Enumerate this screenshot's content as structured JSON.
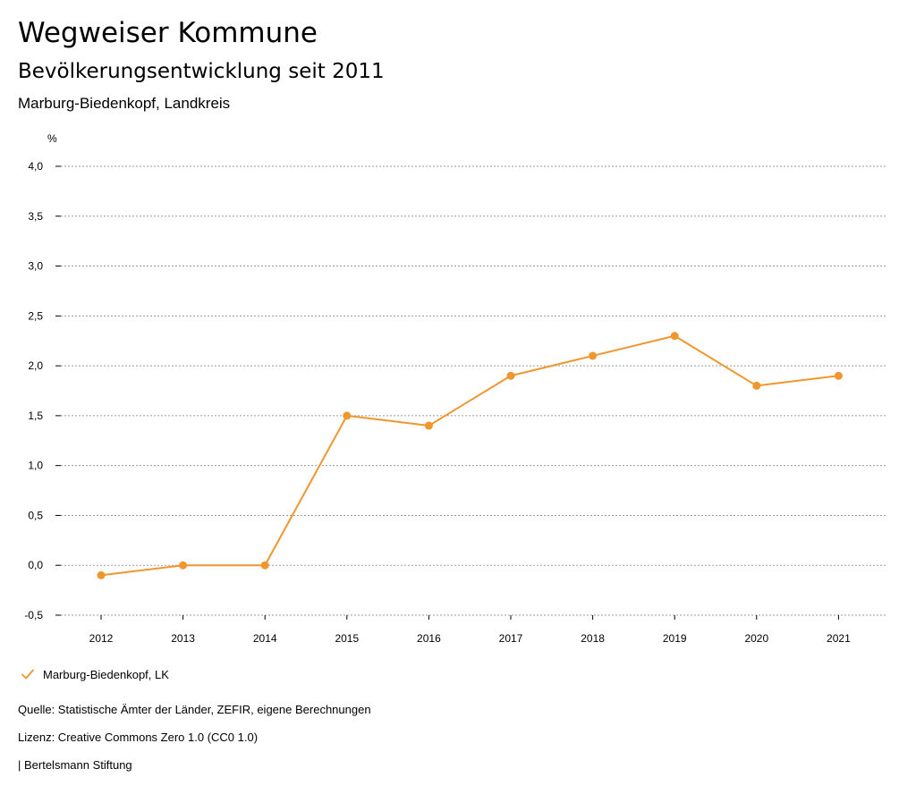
{
  "header": {
    "title": "Wegweiser Kommune",
    "subtitle": "Bevölkerungsentwicklung seit 2011",
    "region": "Marburg-Biedenkopf, Landkreis"
  },
  "chart_data": {
    "type": "line",
    "title": "Bevölkerungsentwicklung seit 2011",
    "xlabel": "",
    "ylabel": "%",
    "categories": [
      "2012",
      "2013",
      "2014",
      "2015",
      "2016",
      "2017",
      "2018",
      "2019",
      "2020",
      "2021"
    ],
    "series": [
      {
        "name": "Marburg-Biedenkopf, LK",
        "color": "#f0962e",
        "values": [
          -0.1,
          0.0,
          0.0,
          1.5,
          1.4,
          1.9,
          2.1,
          2.3,
          1.8,
          1.9
        ]
      }
    ],
    "ylim": [
      -0.5,
      4.0
    ],
    "yticks": [
      -0.5,
      0.0,
      0.5,
      1.0,
      1.5,
      2.0,
      2.5,
      3.0,
      3.5,
      4.0
    ],
    "ytick_labels": [
      "-0,5",
      "0,0",
      "0,5",
      "1,0",
      "1,5",
      "2,0",
      "2,5",
      "3,0",
      "3,5",
      "4,0"
    ],
    "grid": true,
    "legend": "bottom-left"
  },
  "legend": {
    "label": "Marburg-Biedenkopf, LK",
    "icon": "checkmark-icon",
    "color": "#f0962e"
  },
  "footer": {
    "source": "Quelle: Statistische Ämter der Länder, ZEFIR, eigene Berechnungen",
    "license": "Lizenz: Creative Commons Zero 1.0 (CC0 1.0)",
    "publisher": "| Bertelsmann Stiftung"
  }
}
